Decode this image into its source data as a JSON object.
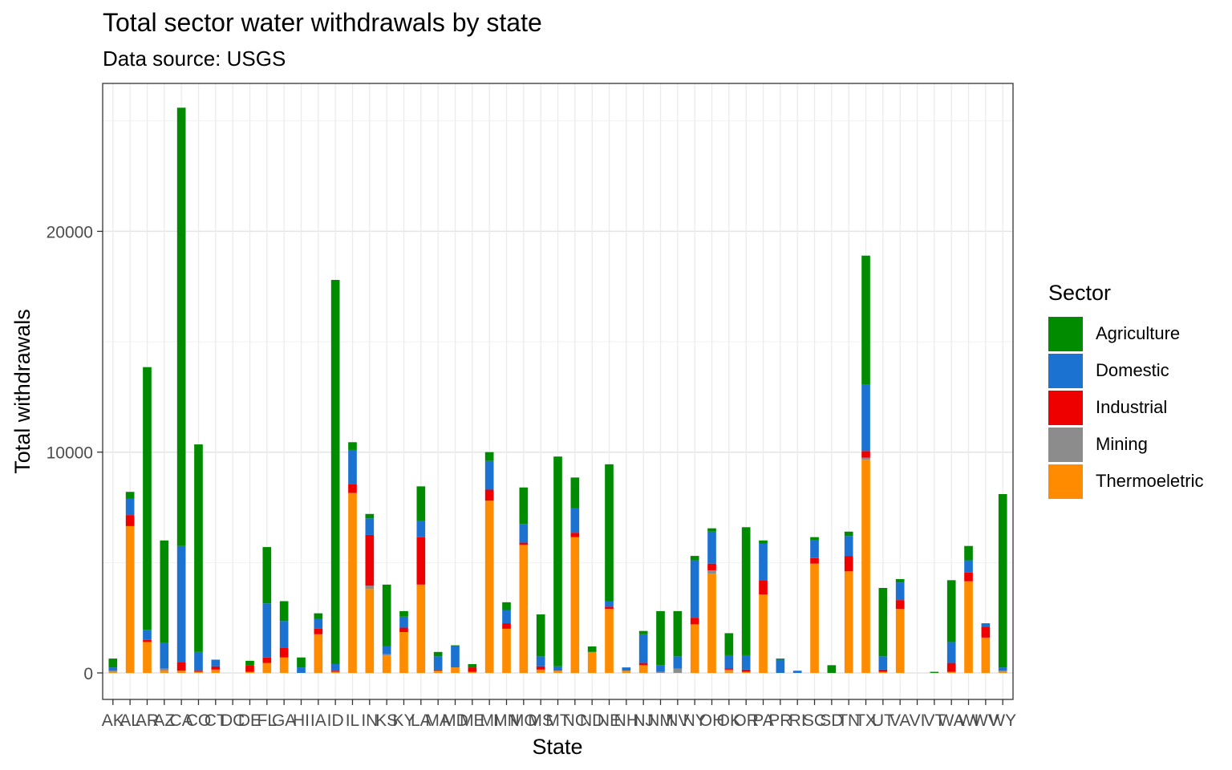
{
  "chart_data": {
    "type": "bar",
    "stacked": true,
    "title": "Total sector water withdrawals by state",
    "subtitle": "Data source: USGS",
    "xlabel": "State",
    "ylabel": "Total withdrawals",
    "ylim": [
      -1200,
      26700
    ],
    "yticks": [
      0,
      10000,
      20000
    ],
    "grid": true,
    "legend_position": "right",
    "legend_title": "Sector",
    "categories": [
      "AK",
      "AL",
      "AR",
      "AZ",
      "CA",
      "CO",
      "CT",
      "DC",
      "DE",
      "FL",
      "GA",
      "HI",
      "IA",
      "ID",
      "IL",
      "IN",
      "KS",
      "KY",
      "LA",
      "MA",
      "MD",
      "ME",
      "MI",
      "MN",
      "MO",
      "MS",
      "MT",
      "NC",
      "ND",
      "NE",
      "NH",
      "NJ",
      "NM",
      "NV",
      "NY",
      "OH",
      "OK",
      "OR",
      "PA",
      "PR",
      "RI",
      "SC",
      "SD",
      "TN",
      "TX",
      "UT",
      "VA",
      "VI",
      "VT",
      "WA",
      "WI",
      "WV",
      "WY"
    ],
    "series": [
      {
        "name": "Thermoeletric",
        "color": "#FF8C00",
        "values": [
          50,
          6650,
          1400,
          100,
          100,
          50,
          150,
          0,
          50,
          450,
          700,
          0,
          1750,
          50,
          8150,
          3800,
          800,
          1850,
          4000,
          100,
          250,
          50,
          7800,
          2000,
          5800,
          150,
          100,
          6150,
          950,
          2900,
          100,
          350,
          0,
          0,
          2200,
          4500,
          100,
          50,
          3550,
          0,
          0,
          4950,
          0,
          4600,
          9650,
          50,
          2900,
          0,
          0,
          50,
          4150,
          1600,
          50
        ]
      },
      {
        "name": "Mining",
        "color": "#8C8C8C",
        "values": [
          50,
          0,
          0,
          100,
          0,
          0,
          0,
          0,
          0,
          0,
          0,
          0,
          0,
          0,
          0,
          150,
          50,
          0,
          0,
          0,
          0,
          0,
          0,
          0,
          0,
          0,
          0,
          0,
          0,
          0,
          0,
          0,
          50,
          200,
          0,
          150,
          50,
          0,
          0,
          0,
          0,
          0,
          0,
          0,
          100,
          0,
          0,
          0,
          0,
          0,
          0,
          0,
          50
        ]
      },
      {
        "name": "Industrial",
        "color": "#EE0000",
        "values": [
          0,
          500,
          100,
          0,
          400,
          50,
          150,
          0,
          300,
          250,
          450,
          0,
          250,
          50,
          400,
          2300,
          0,
          200,
          2150,
          50,
          0,
          200,
          500,
          250,
          100,
          150,
          0,
          200,
          0,
          100,
          0,
          100,
          0,
          0,
          300,
          300,
          50,
          100,
          650,
          0,
          0,
          250,
          0,
          700,
          300,
          100,
          400,
          0,
          0,
          400,
          400,
          500,
          0
        ]
      },
      {
        "name": "Domestic",
        "color": "#1C72D1",
        "values": [
          150,
          750,
          450,
          1150,
          5250,
          850,
          300,
          0,
          0,
          2450,
          1200,
          250,
          450,
          300,
          1550,
          750,
          350,
          500,
          750,
          600,
          950,
          0,
          1300,
          600,
          850,
          450,
          200,
          1100,
          0,
          250,
          150,
          1300,
          300,
          550,
          2600,
          1450,
          600,
          650,
          1650,
          600,
          100,
          800,
          0,
          900,
          3000,
          600,
          800,
          0,
          0,
          950,
          550,
          150,
          150
        ]
      },
      {
        "name": "Agriculture",
        "color": "#008B00",
        "values": [
          400,
          300,
          11900,
          4650,
          19850,
          9400,
          0,
          0,
          200,
          2550,
          900,
          450,
          250,
          17400,
          350,
          200,
          2800,
          250,
          1550,
          200,
          50,
          150,
          400,
          350,
          1650,
          1900,
          9500,
          1400,
          250,
          6200,
          0,
          150,
          2450,
          2050,
          200,
          150,
          1000,
          5800,
          150,
          50,
          0,
          150,
          350,
          200,
          5850,
          3100,
          150,
          0,
          50,
          2800,
          650,
          0,
          7850
        ]
      }
    ]
  }
}
